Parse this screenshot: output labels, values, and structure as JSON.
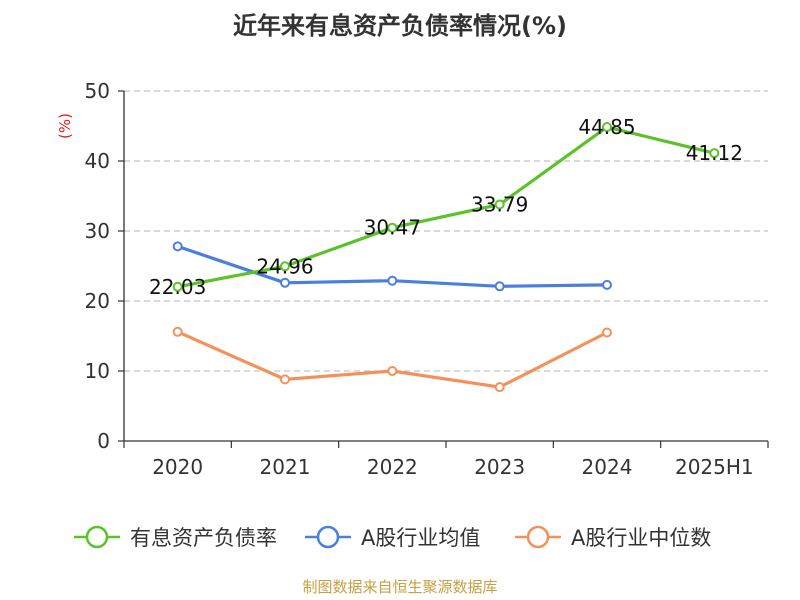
{
  "chart_data": {
    "type": "line",
    "title": "近年来有息资产负债率情况(%)",
    "ylabel": "(%)",
    "xlabel": "",
    "categories": [
      "2020",
      "2021",
      "2022",
      "2023",
      "2024",
      "2025H1"
    ],
    "ylim": [
      0,
      50
    ],
    "yticks": [
      0,
      10,
      20,
      30,
      40,
      50
    ],
    "grid": true,
    "legend_position": "bottom",
    "series": [
      {
        "name": "有息资产负债率",
        "color": "#5cc22a",
        "values": [
          22.03,
          24.96,
          30.47,
          33.79,
          44.85,
          41.12
        ],
        "labels": [
          "22.03",
          "24.96",
          "30.47",
          "33.79",
          "44.85",
          "41.12"
        ]
      },
      {
        "name": "A股行业均值",
        "color": "#4a7fdc",
        "values": [
          27.8,
          22.6,
          22.9,
          22.1,
          22.3,
          null
        ]
      },
      {
        "name": "A股行业中位数",
        "color": "#f4915a",
        "values": [
          15.6,
          8.8,
          10.0,
          7.7,
          15.5,
          null
        ]
      }
    ]
  },
  "source_text": "制图数据来自恒生聚源数据库"
}
